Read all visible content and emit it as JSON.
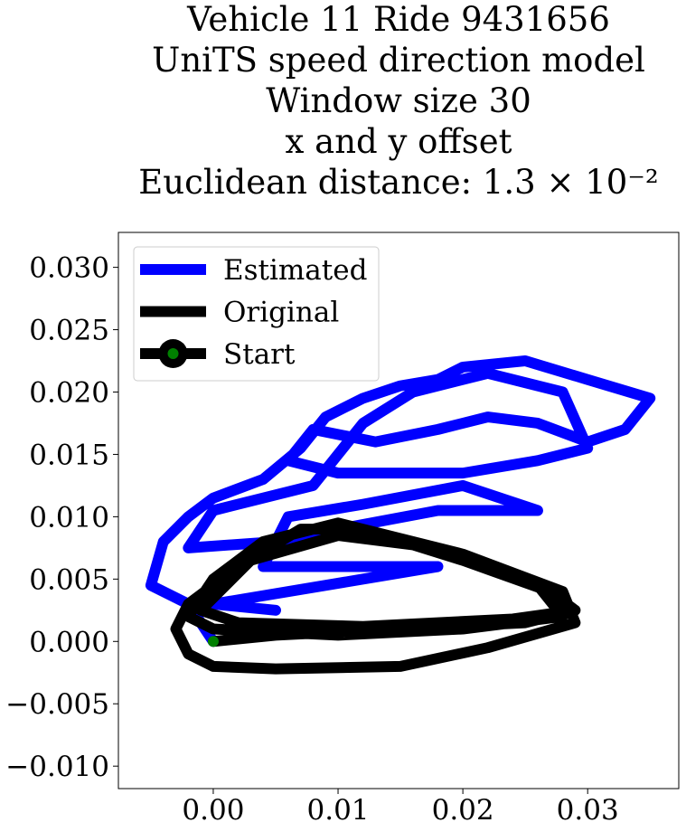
{
  "chart_data": {
    "type": "line",
    "title": [
      "Vehicle 11 Ride 9431656",
      "UniTS speed direction model",
      "Window size 30",
      "x and y offset",
      "Euclidean distance: 1.3 × 10⁻²"
    ],
    "xlim": [
      -0.0076,
      0.0373
    ],
    "ylim": [
      -0.0118,
      0.0328
    ],
    "xticks": [
      {
        "value": 0,
        "label": "0.00"
      },
      {
        "value": 0.01,
        "label": "0.01"
      },
      {
        "value": 0.02,
        "label": "0.02"
      },
      {
        "value": 0.03,
        "label": "0.03"
      }
    ],
    "yticks": [
      {
        "value": -0.01,
        "label": "−0.010"
      },
      {
        "value": -0.005,
        "label": "−0.005"
      },
      {
        "value": 0,
        "label": "0.000"
      },
      {
        "value": 0.005,
        "label": "0.005"
      },
      {
        "value": 0.01,
        "label": "0.010"
      },
      {
        "value": 0.015,
        "label": "0.015"
      },
      {
        "value": 0.02,
        "label": "0.020"
      },
      {
        "value": 0.025,
        "label": "0.025"
      },
      {
        "value": 0.03,
        "label": "0.030"
      }
    ],
    "legend": "upper left",
    "series": [
      {
        "name": "Estimated",
        "color": "#0000ff",
        "x": [
          0,
          -0.002,
          -0.005,
          -0.004,
          -0.002,
          0,
          0.004,
          0.007,
          0.009,
          0.012,
          0.015,
          0.018,
          0.02,
          0.025,
          0.03,
          0.035,
          0.033,
          0.03,
          0.026,
          0.022,
          0.018,
          0.013,
          0.008,
          0.006,
          0.01,
          0.02,
          0.026,
          0.03,
          0.028,
          0.022,
          0.016,
          0.012,
          0.008,
          0.004,
          0,
          -0.002,
          0.005,
          0.01,
          0.018,
          0.026,
          0.02,
          0.012,
          0.006,
          0.004,
          0.018,
          0,
          0.005
        ],
        "values": [
          0,
          0.003,
          0.0045,
          0.008,
          0.01,
          0.0115,
          0.013,
          0.0155,
          0.018,
          0.0195,
          0.0205,
          0.021,
          0.022,
          0.0225,
          0.021,
          0.0195,
          0.017,
          0.016,
          0.0175,
          0.018,
          0.017,
          0.016,
          0.017,
          0.0145,
          0.0135,
          0.0135,
          0.0145,
          0.0155,
          0.02,
          0.0215,
          0.02,
          0.0175,
          0.0125,
          0.0115,
          0.0105,
          0.0075,
          0.008,
          0.009,
          0.0105,
          0.0105,
          0.0125,
          0.011,
          0.01,
          0.006,
          0.006,
          0.003,
          0.0025
        ]
      },
      {
        "name": "Original",
        "color": "#000000",
        "x": [
          0,
          0.005,
          0.015,
          0.025,
          0.029,
          0.027,
          0.02,
          0.012,
          0.007,
          0.002,
          -0.002,
          -0.003,
          -0.002,
          0,
          0.005,
          0.015,
          0.022,
          0.029,
          0.028,
          0.02,
          0.01,
          0.004,
          0,
          -0.002,
          0,
          0.01,
          0.02,
          0.028,
          0.026,
          0.018,
          0.01,
          0.003,
          -0.001,
          0.002,
          0.012,
          0.024,
          0.029
        ],
        "values": [
          0,
          0.0005,
          0.001,
          0.0015,
          0.0025,
          0.004,
          0.0065,
          0.009,
          0.009,
          0.006,
          0.003,
          0.001,
          -0.001,
          -0.002,
          -0.0022,
          -0.002,
          -0.0005,
          0.0015,
          0.004,
          0.007,
          0.0095,
          0.008,
          0.005,
          0.002,
          0.001,
          0.0005,
          0.001,
          0.002,
          0.0045,
          0.0075,
          0.0085,
          0.0065,
          0.0025,
          0.0015,
          0.0012,
          0.0018,
          0.0025
        ]
      },
      {
        "name": "Start",
        "color": "#000000",
        "marker_color": "#008000",
        "x": [
          0
        ],
        "values": [
          0
        ]
      }
    ]
  }
}
